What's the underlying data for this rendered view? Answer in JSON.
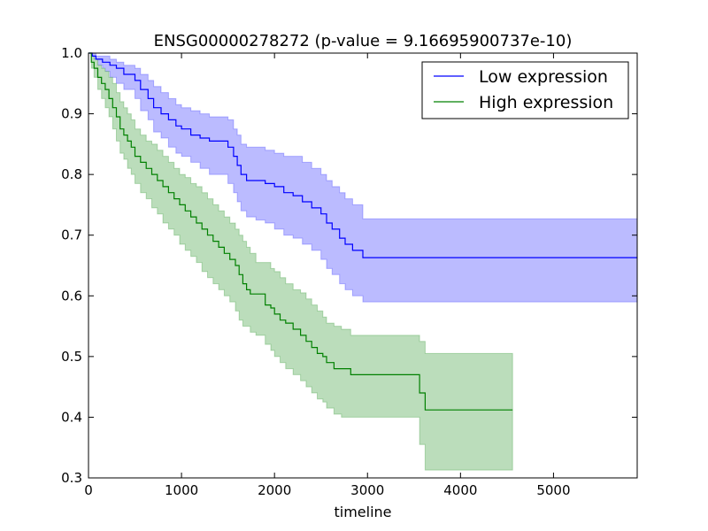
{
  "chart_data": {
    "type": "line",
    "title": "ENSG00000278272 (p-value = 9.16695900737e-10)",
    "xlabel": "timeline",
    "ylabel": "",
    "xlim": [
      0,
      5900
    ],
    "ylim": [
      0.3,
      1.0
    ],
    "x_ticks": [
      0,
      1000,
      2000,
      3000,
      4000,
      5000
    ],
    "x_tick_labels": [
      "0",
      "1000",
      "2000",
      "3000",
      "4000",
      "5000"
    ],
    "y_ticks": [
      0.3,
      0.4,
      0.5,
      0.6,
      0.7,
      0.8,
      0.9,
      1.0
    ],
    "y_tick_labels": [
      "0.3",
      "0.4",
      "0.5",
      "0.6",
      "0.7",
      "0.8",
      "0.9",
      "1.0"
    ],
    "grid": false,
    "legend_position": "top-right",
    "series": [
      {
        "name": "Low expression",
        "color": "#0000ff",
        "band_color": "#bbbbff",
        "x": [
          0,
          40,
          80,
          150,
          230,
          300,
          380,
          500,
          560,
          640,
          700,
          780,
          860,
          940,
          1000,
          1100,
          1200,
          1300,
          1400,
          1500,
          1560,
          1600,
          1640,
          1700,
          1800,
          1900,
          2000,
          2100,
          2200,
          2300,
          2400,
          2500,
          2560,
          2620,
          2700,
          2760,
          2840,
          2950,
          5900
        ],
        "y": [
          1.0,
          0.995,
          0.99,
          0.985,
          0.98,
          0.975,
          0.965,
          0.955,
          0.94,
          0.925,
          0.91,
          0.9,
          0.89,
          0.88,
          0.875,
          0.865,
          0.86,
          0.855,
          0.855,
          0.845,
          0.83,
          0.815,
          0.8,
          0.79,
          0.79,
          0.785,
          0.78,
          0.77,
          0.765,
          0.755,
          0.745,
          0.735,
          0.72,
          0.71,
          0.695,
          0.685,
          0.675,
          0.663,
          0.663
        ],
        "lower": [
          1.0,
          0.99,
          0.98,
          0.97,
          0.96,
          0.95,
          0.94,
          0.925,
          0.905,
          0.89,
          0.87,
          0.86,
          0.845,
          0.835,
          0.83,
          0.82,
          0.81,
          0.8,
          0.8,
          0.785,
          0.77,
          0.755,
          0.74,
          0.73,
          0.725,
          0.72,
          0.71,
          0.7,
          0.695,
          0.685,
          0.675,
          0.66,
          0.645,
          0.635,
          0.62,
          0.61,
          0.6,
          0.59,
          0.59
        ],
        "upper": [
          1.0,
          1.0,
          0.995,
          0.995,
          0.99,
          0.985,
          0.98,
          0.975,
          0.965,
          0.955,
          0.945,
          0.935,
          0.925,
          0.915,
          0.91,
          0.905,
          0.9,
          0.895,
          0.895,
          0.89,
          0.875,
          0.865,
          0.85,
          0.845,
          0.845,
          0.84,
          0.835,
          0.83,
          0.83,
          0.82,
          0.81,
          0.8,
          0.79,
          0.78,
          0.77,
          0.76,
          0.75,
          0.727,
          0.727
        ]
      },
      {
        "name": "High expression",
        "color": "#008000",
        "band_color": "#bbddbb",
        "x": [
          0,
          30,
          60,
          100,
          140,
          180,
          220,
          260,
          300,
          340,
          380,
          420,
          460,
          500,
          560,
          620,
          680,
          740,
          800,
          860,
          920,
          980,
          1040,
          1100,
          1160,
          1220,
          1280,
          1340,
          1400,
          1460,
          1520,
          1580,
          1620,
          1660,
          1700,
          1740,
          1800,
          1900,
          1960,
          2000,
          2060,
          2120,
          2200,
          2280,
          2340,
          2400,
          2460,
          2520,
          2560,
          2640,
          2720,
          2820,
          3000,
          3200,
          3400,
          3560,
          3620,
          4560
        ],
        "y": [
          1.0,
          0.985,
          0.975,
          0.96,
          0.95,
          0.94,
          0.925,
          0.91,
          0.895,
          0.875,
          0.865,
          0.855,
          0.845,
          0.83,
          0.82,
          0.81,
          0.8,
          0.79,
          0.78,
          0.77,
          0.76,
          0.75,
          0.74,
          0.73,
          0.72,
          0.71,
          0.7,
          0.69,
          0.68,
          0.67,
          0.66,
          0.65,
          0.635,
          0.62,
          0.61,
          0.603,
          0.603,
          0.585,
          0.58,
          0.57,
          0.56,
          0.555,
          0.545,
          0.535,
          0.525,
          0.515,
          0.505,
          0.5,
          0.49,
          0.48,
          0.48,
          0.47,
          0.47,
          0.47,
          0.47,
          0.44,
          0.412,
          0.412
        ],
        "lower": [
          1.0,
          0.975,
          0.96,
          0.94,
          0.925,
          0.91,
          0.895,
          0.875,
          0.855,
          0.835,
          0.825,
          0.81,
          0.8,
          0.785,
          0.77,
          0.76,
          0.745,
          0.735,
          0.72,
          0.71,
          0.7,
          0.685,
          0.675,
          0.665,
          0.655,
          0.64,
          0.63,
          0.62,
          0.61,
          0.6,
          0.59,
          0.575,
          0.56,
          0.55,
          0.55,
          0.54,
          0.535,
          0.52,
          0.51,
          0.5,
          0.49,
          0.48,
          0.47,
          0.46,
          0.45,
          0.44,
          0.43,
          0.425,
          0.415,
          0.405,
          0.4,
          0.4,
          0.4,
          0.4,
          0.4,
          0.355,
          0.313,
          0.313
        ],
        "upper": [
          1.0,
          0.995,
          0.99,
          0.98,
          0.975,
          0.97,
          0.96,
          0.95,
          0.935,
          0.92,
          0.91,
          0.9,
          0.89,
          0.875,
          0.865,
          0.855,
          0.85,
          0.84,
          0.83,
          0.82,
          0.81,
          0.8,
          0.795,
          0.785,
          0.78,
          0.77,
          0.76,
          0.75,
          0.74,
          0.73,
          0.72,
          0.71,
          0.7,
          0.69,
          0.68,
          0.67,
          0.655,
          0.655,
          0.645,
          0.64,
          0.63,
          0.62,
          0.61,
          0.605,
          0.595,
          0.585,
          0.575,
          0.565,
          0.555,
          0.55,
          0.545,
          0.535,
          0.535,
          0.535,
          0.535,
          0.525,
          0.505,
          0.505
        ]
      }
    ]
  }
}
